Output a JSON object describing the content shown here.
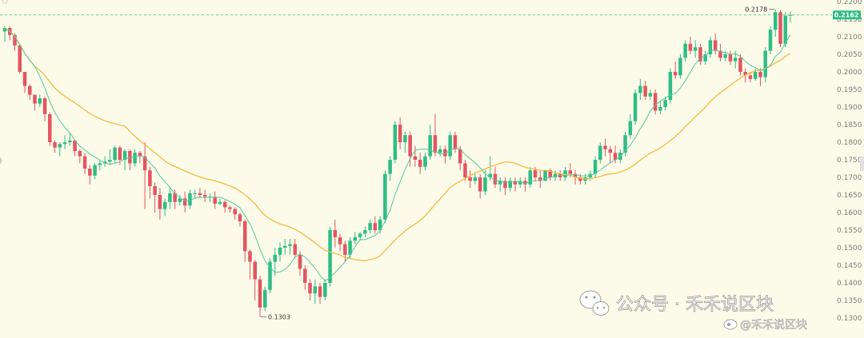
{
  "chart_data": {
    "type": "candlestick",
    "colors": {
      "up": "#2ebd85",
      "down": "#e35561",
      "ma_fast": "#56c7a0",
      "ma_slow": "#f5b941",
      "background": "#fcfbe9",
      "last_price_line": "#2ebd85"
    },
    "ylim": [
      0.13,
      0.22
    ],
    "y_ticks": [
      "0.2200",
      "0.2150",
      "0.2100",
      "0.2050",
      "0.2000",
      "0.1950",
      "0.1900",
      "0.1850",
      "0.1800",
      "0.1750",
      "0.1700",
      "0.1650",
      "0.1600",
      "0.1550",
      "0.1500",
      "0.1450",
      "0.1400",
      "0.1350",
      "0.1300"
    ],
    "last_price": "0.2162",
    "high_label": "0.2178",
    "low_label": "0.1303",
    "candles": [
      [
        0.2115,
        0.213,
        0.2125,
        0.2085
      ],
      [
        0.2125,
        0.213,
        0.2105,
        0.209
      ],
      [
        0.2105,
        0.211,
        0.2075,
        0.206
      ],
      [
        0.2075,
        0.208,
        0.2,
        0.1995
      ],
      [
        0.2,
        0.1995,
        0.196,
        0.194
      ],
      [
        0.196,
        0.1965,
        0.1935,
        0.192
      ],
      [
        0.1935,
        0.1935,
        0.191,
        0.189
      ],
      [
        0.191,
        0.1935,
        0.1925,
        0.19
      ],
      [
        0.1925,
        0.193,
        0.188,
        0.186
      ],
      [
        0.188,
        0.1885,
        0.18,
        0.179
      ],
      [
        0.18,
        0.1805,
        0.1785,
        0.177
      ],
      [
        0.1785,
        0.18,
        0.1795,
        0.176
      ],
      [
        0.1795,
        0.182,
        0.18,
        0.178
      ],
      [
        0.18,
        0.1825,
        0.1805,
        0.179
      ],
      [
        0.1805,
        0.1805,
        0.1775,
        0.176
      ],
      [
        0.1775,
        0.178,
        0.176,
        0.174
      ],
      [
        0.176,
        0.177,
        0.1725,
        0.171
      ],
      [
        0.1725,
        0.1735,
        0.1705,
        0.168
      ],
      [
        0.1705,
        0.174,
        0.1735,
        0.1695
      ],
      [
        0.1735,
        0.175,
        0.174,
        0.172
      ],
      [
        0.174,
        0.176,
        0.1745,
        0.173
      ],
      [
        0.1745,
        0.178,
        0.175,
        0.1735
      ],
      [
        0.175,
        0.179,
        0.1785,
        0.174
      ],
      [
        0.1785,
        0.179,
        0.175,
        0.1735
      ],
      [
        0.175,
        0.178,
        0.1775,
        0.172
      ],
      [
        0.1775,
        0.178,
        0.174,
        0.172
      ],
      [
        0.174,
        0.178,
        0.177,
        0.173
      ],
      [
        0.177,
        0.1775,
        0.176,
        0.174
      ],
      [
        0.176,
        0.18,
        0.172,
        0.161
      ],
      [
        0.172,
        0.173,
        0.1675,
        0.164
      ],
      [
        0.1675,
        0.1685,
        0.165,
        0.16
      ],
      [
        0.165,
        0.167,
        0.161,
        0.158
      ],
      [
        0.161,
        0.164,
        0.163,
        0.159
      ],
      [
        0.163,
        0.167,
        0.1655,
        0.161
      ],
      [
        0.1655,
        0.1665,
        0.163,
        0.161
      ],
      [
        0.163,
        0.165,
        0.164,
        0.162
      ],
      [
        0.164,
        0.166,
        0.162,
        0.16
      ],
      [
        0.162,
        0.1665,
        0.1655,
        0.161
      ],
      [
        0.1655,
        0.1665,
        0.1655,
        0.164
      ],
      [
        0.1655,
        0.167,
        0.165,
        0.164
      ],
      [
        0.165,
        0.1665,
        0.1645,
        0.163
      ],
      [
        0.1645,
        0.1655,
        0.1645,
        0.163
      ],
      [
        0.1645,
        0.166,
        0.1625,
        0.161
      ],
      [
        0.1625,
        0.164,
        0.163,
        0.162
      ],
      [
        0.163,
        0.1635,
        0.1615,
        0.16
      ],
      [
        0.1615,
        0.162,
        0.161,
        0.16
      ],
      [
        0.161,
        0.1615,
        0.1595,
        0.158
      ],
      [
        0.1595,
        0.16,
        0.1575,
        0.156
      ],
      [
        0.1575,
        0.158,
        0.149,
        0.146
      ],
      [
        0.149,
        0.1495,
        0.146,
        0.141
      ],
      [
        0.146,
        0.1465,
        0.141,
        0.135
      ],
      [
        0.141,
        0.142,
        0.133,
        0.1303
      ],
      [
        0.133,
        0.139,
        0.138,
        0.132
      ],
      [
        0.138,
        0.147,
        0.146,
        0.137
      ],
      [
        0.146,
        0.15,
        0.148,
        0.142
      ],
      [
        0.148,
        0.1515,
        0.15,
        0.146
      ],
      [
        0.15,
        0.1525,
        0.1505,
        0.148
      ],
      [
        0.1505,
        0.1525,
        0.151,
        0.148
      ],
      [
        0.151,
        0.1525,
        0.148,
        0.147
      ],
      [
        0.148,
        0.149,
        0.144,
        0.142
      ],
      [
        0.144,
        0.145,
        0.14,
        0.138
      ],
      [
        0.14,
        0.141,
        0.137,
        0.135
      ],
      [
        0.137,
        0.141,
        0.139,
        0.134
      ],
      [
        0.139,
        0.14,
        0.136,
        0.134
      ],
      [
        0.136,
        0.141,
        0.14,
        0.135
      ],
      [
        0.14,
        0.156,
        0.155,
        0.139
      ],
      [
        0.155,
        0.158,
        0.153,
        0.15
      ],
      [
        0.153,
        0.154,
        0.151,
        0.149
      ],
      [
        0.151,
        0.152,
        0.148,
        0.146
      ],
      [
        0.148,
        0.153,
        0.152,
        0.147
      ],
      [
        0.152,
        0.1545,
        0.153,
        0.151
      ],
      [
        0.153,
        0.1545,
        0.154,
        0.152
      ],
      [
        0.154,
        0.156,
        0.155,
        0.153
      ],
      [
        0.155,
        0.158,
        0.157,
        0.154
      ],
      [
        0.157,
        0.159,
        0.155,
        0.154
      ],
      [
        0.155,
        0.159,
        0.158,
        0.154
      ],
      [
        0.158,
        0.172,
        0.171,
        0.157
      ],
      [
        0.171,
        0.176,
        0.175,
        0.169
      ],
      [
        0.175,
        0.186,
        0.185,
        0.174
      ],
      [
        0.185,
        0.187,
        0.18,
        0.178
      ],
      [
        0.18,
        0.183,
        0.182,
        0.177
      ],
      [
        0.182,
        0.183,
        0.176,
        0.173
      ],
      [
        0.176,
        0.179,
        0.175,
        0.173
      ],
      [
        0.175,
        0.177,
        0.173,
        0.171
      ],
      [
        0.173,
        0.177,
        0.176,
        0.172
      ],
      [
        0.176,
        0.185,
        0.182,
        0.175
      ],
      [
        0.182,
        0.188,
        0.177,
        0.176
      ],
      [
        0.177,
        0.179,
        0.178,
        0.176
      ],
      [
        0.178,
        0.179,
        0.176,
        0.174
      ],
      [
        0.176,
        0.183,
        0.182,
        0.175
      ],
      [
        0.182,
        0.183,
        0.178,
        0.177
      ],
      [
        0.178,
        0.179,
        0.174,
        0.172
      ],
      [
        0.174,
        0.175,
        0.17,
        0.169
      ],
      [
        0.17,
        0.172,
        0.169,
        0.167
      ],
      [
        0.169,
        0.171,
        0.17,
        0.168
      ],
      [
        0.17,
        0.171,
        0.166,
        0.164
      ],
      [
        0.166,
        0.172,
        0.17,
        0.165
      ],
      [
        0.17,
        0.176,
        0.171,
        0.169
      ],
      [
        0.171,
        0.173,
        0.168,
        0.167
      ],
      [
        0.168,
        0.17,
        0.169,
        0.166
      ],
      [
        0.169,
        0.17,
        0.167,
        0.165
      ],
      [
        0.167,
        0.17,
        0.169,
        0.166
      ],
      [
        0.169,
        0.17,
        0.168,
        0.166
      ],
      [
        0.168,
        0.17,
        0.169,
        0.167
      ],
      [
        0.169,
        0.17,
        0.168,
        0.166
      ],
      [
        0.168,
        0.173,
        0.172,
        0.167
      ],
      [
        0.172,
        0.173,
        0.17,
        0.169
      ],
      [
        0.17,
        0.172,
        0.169,
        0.167
      ],
      [
        0.169,
        0.172,
        0.172,
        0.169
      ],
      [
        0.172,
        0.1725,
        0.17,
        0.169
      ],
      [
        0.17,
        0.172,
        0.171,
        0.169
      ],
      [
        0.171,
        0.172,
        0.17,
        0.169
      ],
      [
        0.17,
        0.173,
        0.172,
        0.169
      ],
      [
        0.172,
        0.174,
        0.171,
        0.17
      ],
      [
        0.171,
        0.172,
        0.17,
        0.168
      ],
      [
        0.17,
        0.171,
        0.169,
        0.168
      ],
      [
        0.169,
        0.171,
        0.17,
        0.168
      ],
      [
        0.17,
        0.172,
        0.171,
        0.169
      ],
      [
        0.171,
        0.176,
        0.175,
        0.17
      ],
      [
        0.175,
        0.18,
        0.179,
        0.174
      ],
      [
        0.179,
        0.181,
        0.178,
        0.176
      ],
      [
        0.178,
        0.179,
        0.177,
        0.174
      ],
      [
        0.177,
        0.179,
        0.175,
        0.174
      ],
      [
        0.175,
        0.178,
        0.177,
        0.174
      ],
      [
        0.177,
        0.183,
        0.182,
        0.176
      ],
      [
        0.182,
        0.188,
        0.186,
        0.181
      ],
      [
        0.186,
        0.195,
        0.194,
        0.185
      ],
      [
        0.194,
        0.198,
        0.196,
        0.192
      ],
      [
        0.196,
        0.1975,
        0.193,
        0.192
      ],
      [
        0.193,
        0.195,
        0.194,
        0.192
      ],
      [
        0.194,
        0.195,
        0.189,
        0.188
      ],
      [
        0.189,
        0.192,
        0.19,
        0.188
      ],
      [
        0.19,
        0.193,
        0.192,
        0.189
      ],
      [
        0.192,
        0.201,
        0.2,
        0.191
      ],
      [
        0.2,
        0.203,
        0.199,
        0.198
      ],
      [
        0.199,
        0.205,
        0.204,
        0.198
      ],
      [
        0.204,
        0.209,
        0.208,
        0.203
      ],
      [
        0.208,
        0.21,
        0.206,
        0.205
      ],
      [
        0.206,
        0.209,
        0.207,
        0.204
      ],
      [
        0.207,
        0.208,
        0.203,
        0.202
      ],
      [
        0.203,
        0.206,
        0.205,
        0.202
      ],
      [
        0.205,
        0.21,
        0.209,
        0.204
      ],
      [
        0.209,
        0.211,
        0.206,
        0.205
      ],
      [
        0.206,
        0.208,
        0.204,
        0.203
      ],
      [
        0.204,
        0.206,
        0.205,
        0.203
      ],
      [
        0.205,
        0.206,
        0.203,
        0.202
      ],
      [
        0.203,
        0.206,
        0.204,
        0.201
      ],
      [
        0.204,
        0.205,
        0.2,
        0.199
      ],
      [
        0.2,
        0.201,
        0.199,
        0.197
      ],
      [
        0.199,
        0.2,
        0.198,
        0.197
      ],
      [
        0.198,
        0.201,
        0.2,
        0.1975
      ],
      [
        0.2,
        0.201,
        0.1985,
        0.196
      ],
      [
        0.1985,
        0.207,
        0.206,
        0.197
      ],
      [
        0.206,
        0.213,
        0.212,
        0.205
      ],
      [
        0.212,
        0.2178,
        0.217,
        0.21
      ],
      [
        0.217,
        0.2175,
        0.208,
        0.207
      ],
      [
        0.208,
        0.217,
        0.216,
        0.207
      ],
      [
        0.216,
        0.2172,
        0.2162,
        0.214
      ]
    ]
  },
  "watermark": {
    "account_line": "公众号 · 禾禾说区块",
    "handle_line": "@禾禾说区块"
  }
}
